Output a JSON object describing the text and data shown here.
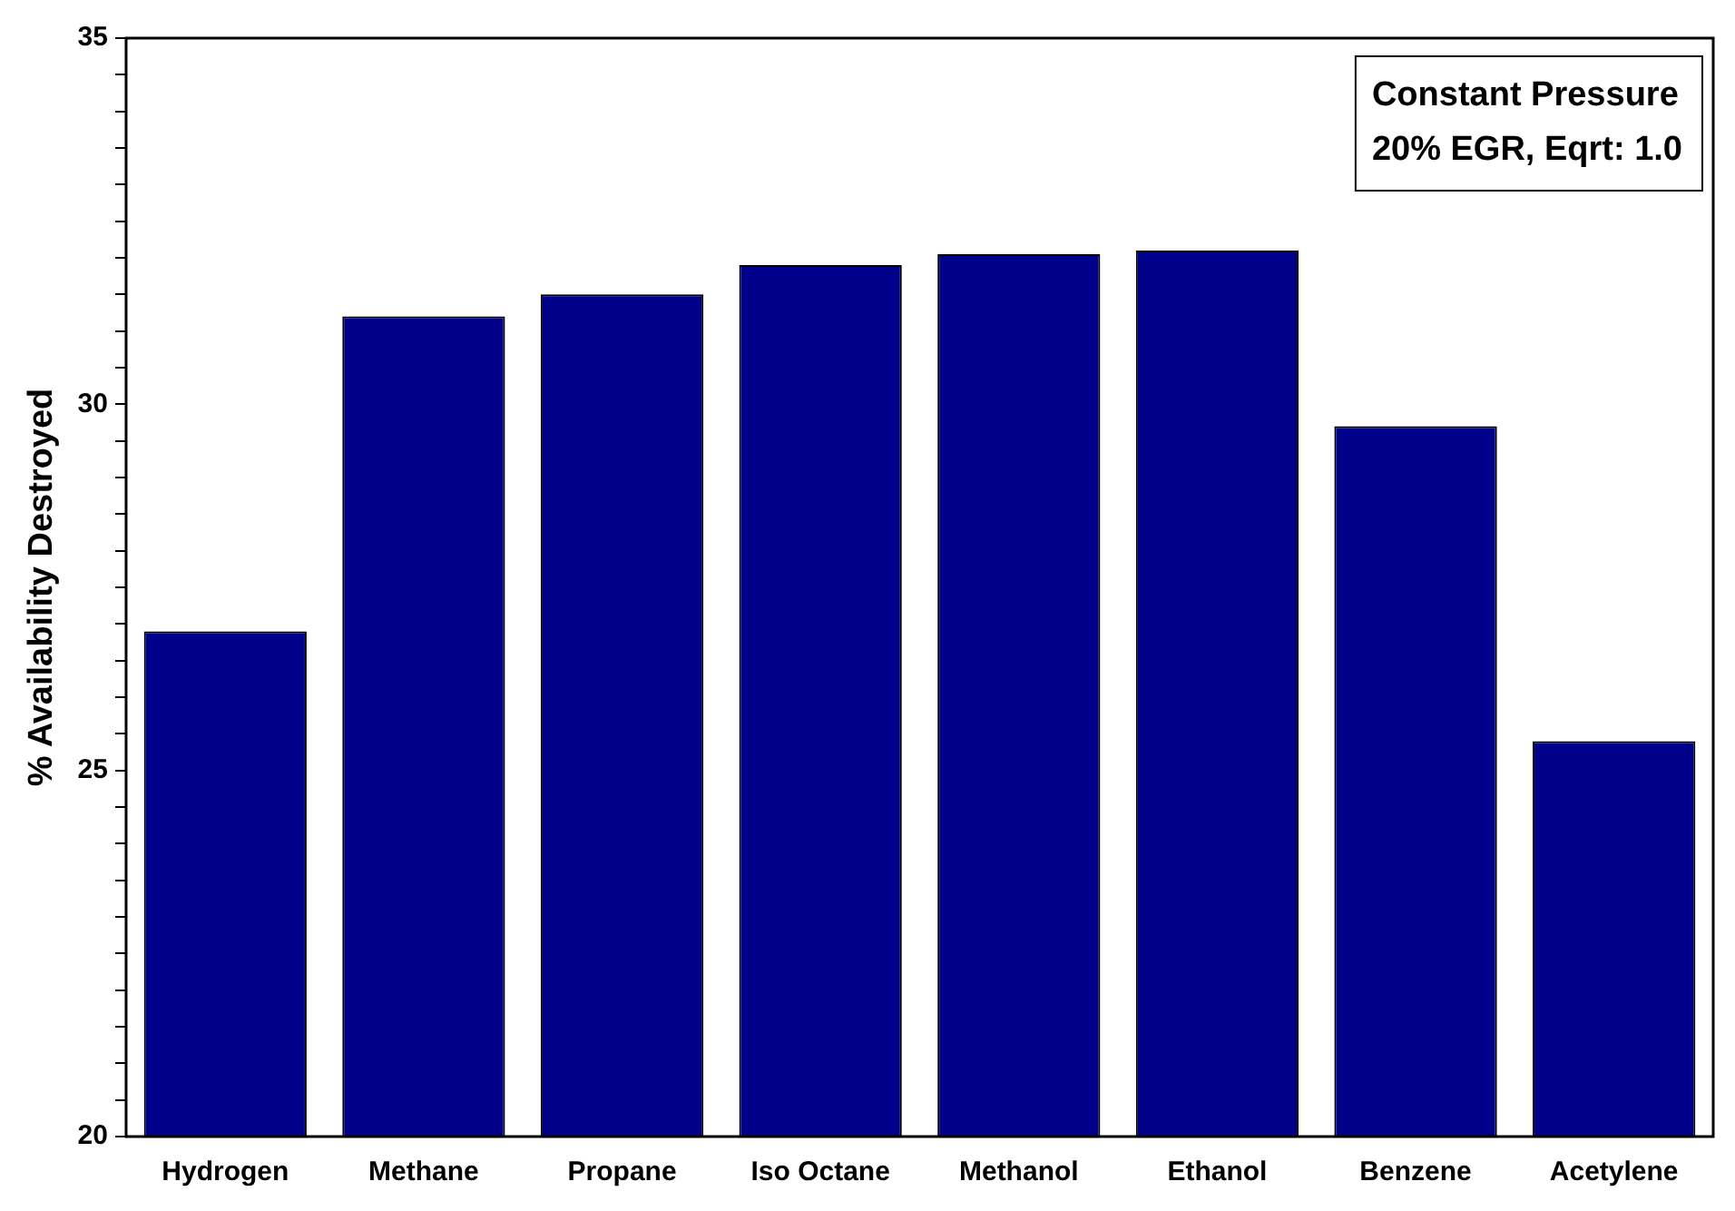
{
  "chart_data": {
    "type": "bar",
    "ylabel": "% Availability Destroyed",
    "annotations": [
      "Constant Pressure",
      "20% EGR, Eqrt: 1.0"
    ],
    "categories": [
      "Hydrogen",
      "Methane",
      "Propane",
      "Iso Octane",
      "Methanol",
      "Ethanol",
      "Benzene",
      "Acetylene"
    ],
    "values": [
      26.9,
      31.2,
      31.5,
      31.9,
      32.05,
      32.1,
      29.7,
      25.4
    ],
    "color": "#00008b",
    "ylim": [
      20,
      35
    ],
    "yticks": [
      20,
      {
        "value": 20.5,
        "label": null
      },
      {
        "value": 21,
        "label": null
      },
      {
        "value": 21.5,
        "label": null
      },
      {
        "value": 22,
        "label": null
      },
      {
        "value": 22.5,
        "label": null
      },
      {
        "value": 23,
        "label": null
      },
      {
        "value": 23.5,
        "label": null
      },
      {
        "value": 24,
        "label": null
      },
      {
        "value": 24.5,
        "label": null
      },
      25,
      {
        "value": 25.5,
        "label": null
      },
      {
        "value": 26,
        "label": null
      },
      {
        "value": 26.5,
        "label": null
      },
      {
        "value": 27,
        "label": null
      },
      {
        "value": 27.5,
        "label": null
      },
      {
        "value": 28,
        "label": null
      },
      {
        "value": 28.5,
        "label": null
      },
      {
        "value": 29,
        "label": null
      },
      {
        "value": 29.5,
        "label": null
      },
      30,
      {
        "value": 30.5,
        "label": null
      },
      {
        "value": 31,
        "label": null
      },
      {
        "value": 31.5,
        "label": null
      },
      {
        "value": 32,
        "label": null
      },
      {
        "value": 32.5,
        "label": null
      },
      {
        "value": 33,
        "label": null
      },
      {
        "value": 33.5,
        "label": null
      },
      {
        "value": 34,
        "label": null
      },
      {
        "value": 34.5,
        "label": null
      },
      35
    ],
    "grid": false,
    "legend": false
  }
}
